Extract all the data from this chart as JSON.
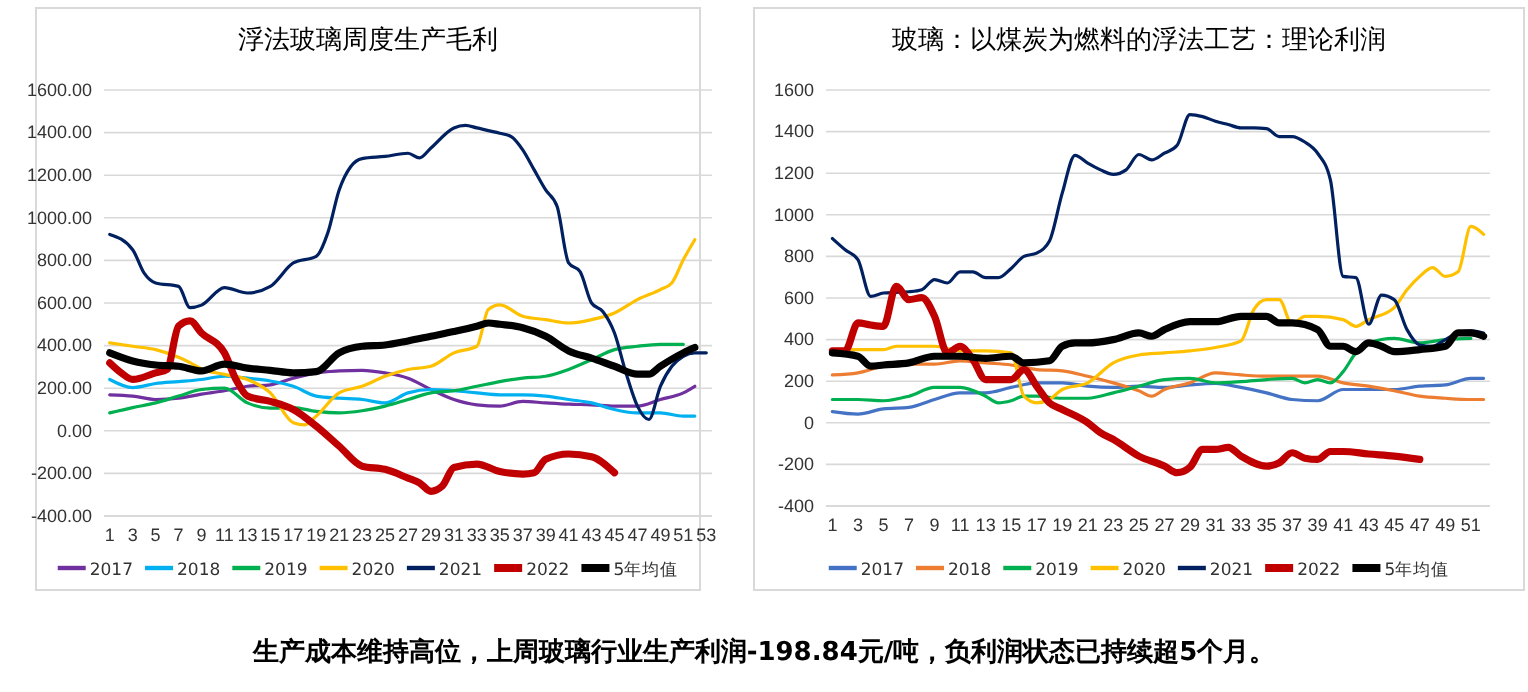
{
  "chart_data": [
    {
      "type": "line",
      "title": "浮法玻璃周度生产毛利",
      "xlim": [
        0.5,
        53.5
      ],
      "xticks": [
        1,
        3,
        5,
        7,
        9,
        11,
        13,
        15,
        17,
        19,
        21,
        23,
        25,
        27,
        29,
        31,
        33,
        35,
        37,
        39,
        41,
        43,
        45,
        47,
        49,
        51,
        53
      ],
      "ylim": [
        -400,
        1600
      ],
      "yticks": [
        {
          "value": -400,
          "label": "-400.00"
        },
        {
          "value": -200,
          "label": "-200.00"
        },
        {
          "value": 0,
          "label": "0.00"
        },
        {
          "value": 200,
          "label": "200.00"
        },
        {
          "value": 400,
          "label": "400.00"
        },
        {
          "value": 600,
          "label": "600.00"
        },
        {
          "value": 800,
          "label": "800.00"
        },
        {
          "value": 1000,
          "label": "1000.00"
        },
        {
          "value": 1200,
          "label": "1200.00"
        },
        {
          "value": 1400,
          "label": "1400.00"
        },
        {
          "value": 1600,
          "label": "1600.00"
        }
      ],
      "grid": "y",
      "legend": "bottom",
      "line_style": "solid",
      "marker": "none",
      "series": [
        {
          "name": "2017",
          "color": "#7030a0",
          "x": [
            1,
            3,
            5,
            7,
            9,
            11,
            13,
            15,
            17,
            19,
            21,
            23,
            25,
            27,
            29,
            31,
            33,
            35,
            37,
            39,
            41,
            43,
            45,
            47,
            49,
            51,
            52
          ],
          "values": [
            169,
            163,
            147,
            153,
            172,
            188,
            209,
            216,
            247,
            272,
            281,
            284,
            272,
            247,
            194,
            147,
            122,
            116,
            138,
            131,
            125,
            122,
            116,
            116,
            147,
            178,
            209
          ]
        },
        {
          "name": "2018",
          "color": "#00b0f0",
          "x": [
            1,
            3,
            5,
            7,
            9,
            11,
            13,
            15,
            17,
            19,
            21,
            23,
            25,
            27,
            29,
            31,
            33,
            35,
            37,
            39,
            41,
            43,
            45,
            47,
            49,
            51,
            52
          ],
          "values": [
            241,
            203,
            222,
            231,
            241,
            256,
            247,
            234,
            209,
            163,
            153,
            147,
            131,
            178,
            194,
            188,
            178,
            169,
            169,
            163,
            147,
            131,
            100,
            84,
            84,
            69,
            69
          ]
        },
        {
          "name": "2019",
          "color": "#00b050",
          "x": [
            1,
            3,
            5,
            7,
            9,
            11,
            13,
            15,
            17,
            19,
            21,
            23,
            25,
            27,
            29,
            31,
            33,
            35,
            37,
            39,
            41,
            43,
            45,
            47,
            49,
            51
          ],
          "values": [
            84,
            109,
            131,
            163,
            194,
            200,
            131,
            106,
            109,
            91,
            84,
            94,
            116,
            147,
            178,
            188,
            209,
            231,
            247,
            256,
            288,
            334,
            381,
            397,
            406,
            406
          ]
        },
        {
          "name": "2020",
          "color": "#ffc000",
          "x": [
            1,
            3,
            5,
            7,
            8,
            9,
            11,
            13,
            15,
            17,
            18,
            19,
            21,
            23,
            25,
            27,
            29,
            31,
            33,
            34,
            35,
            37,
            39,
            41,
            43,
            45,
            47,
            49,
            50,
            51,
            52
          ],
          "values": [
            413,
            397,
            381,
            345,
            320,
            290,
            265,
            241,
            178,
            38,
            28,
            69,
            178,
            209,
            256,
            288,
            303,
            366,
            397,
            569,
            591,
            538,
            522,
            506,
            522,
            553,
            616,
            663,
            694,
            803,
            897
          ]
        },
        {
          "name": "2021",
          "color": "#002060",
          "x": [
            1,
            3,
            4,
            5,
            7,
            8,
            9,
            11,
            13,
            15,
            17,
            19,
            20,
            21,
            22,
            23,
            25,
            27,
            28,
            29,
            31,
            32,
            33,
            35,
            36,
            37,
            38,
            39,
            40,
            41,
            42,
            43,
            44,
            45,
            46,
            47,
            48,
            49,
            50,
            51,
            52,
            53
          ],
          "values": [
            922,
            850,
            740,
            694,
            678,
            578,
            590,
            672,
            647,
            678,
            788,
            819,
            928,
            1131,
            1240,
            1278,
            1288,
            1303,
            1281,
            1328,
            1422,
            1434,
            1422,
            1397,
            1381,
            1319,
            1225,
            1131,
            1053,
            788,
            747,
            600,
            559,
            459,
            272,
            116,
            53,
            209,
            303,
            350,
            366,
            366
          ]
        },
        {
          "name": "2022",
          "color": "#c00000",
          "x": [
            1,
            2,
            3,
            5,
            6,
            7,
            8,
            9,
            11,
            12,
            13,
            15,
            17,
            19,
            21,
            23,
            25,
            27,
            28,
            29,
            30,
            31,
            33,
            35,
            37,
            38,
            39,
            41,
            43,
            45
          ],
          "values": [
            319,
            272,
            241,
            272,
            288,
            491,
            516,
            459,
            366,
            241,
            163,
            138,
            100,
            22,
            -72,
            -166,
            -181,
            -222,
            -244,
            -284,
            -259,
            -172,
            -156,
            -191,
            -203,
            -197,
            -134,
            -109,
            -122,
            -197
          ]
        },
        {
          "name": "5年均值",
          "color": "#000000",
          "x": [
            1,
            3,
            5,
            7,
            9,
            11,
            13,
            15,
            17,
            19,
            21,
            23,
            25,
            27,
            29,
            31,
            33,
            34,
            35,
            37,
            39,
            41,
            43,
            45,
            47,
            48,
            49,
            51,
            52
          ],
          "values": [
            366,
            328,
            309,
            303,
            281,
            313,
            294,
            284,
            272,
            278,
            366,
            397,
            403,
            422,
            444,
            466,
            491,
            506,
            500,
            484,
            444,
            375,
            341,
            303,
            266,
            266,
            303,
            366,
            391
          ]
        }
      ]
    },
    {
      "type": "line",
      "title": "玻璃：以煤炭为燃料的浮法工艺：理论利润",
      "xlim": [
        0.5,
        52.5
      ],
      "xticks": [
        1,
        3,
        5,
        7,
        9,
        11,
        13,
        15,
        17,
        19,
        21,
        23,
        25,
        27,
        29,
        31,
        33,
        35,
        37,
        39,
        41,
        43,
        45,
        47,
        49,
        51
      ],
      "ylim": [
        -400,
        1600
      ],
      "yticks": [
        -400,
        -200,
        0,
        200,
        400,
        600,
        800,
        1000,
        1200,
        1400,
        1600
      ],
      "grid": "y",
      "legend": "bottom",
      "line_style": "solid",
      "marker": "none",
      "annotations": [
        "生产成本维持高位，上周玻璃行业生产利润-198.84元/吨，负利润状态已持续超5个月。"
      ],
      "series": [
        {
          "name": "2017",
          "color": "#4472c4",
          "x": [
            1,
            3,
            5,
            7,
            9,
            11,
            13,
            15,
            17,
            19,
            21,
            23,
            25,
            27,
            29,
            31,
            33,
            35,
            37,
            39,
            41,
            43,
            45,
            47,
            49,
            51,
            52
          ],
          "values": [
            54,
            42,
            67,
            74,
            112,
            144,
            144,
            170,
            192,
            192,
            176,
            170,
            176,
            170,
            182,
            189,
            170,
            144,
            112,
            106,
            160,
            160,
            160,
            176,
            182,
            214,
            214
          ]
        },
        {
          "name": "2018",
          "color": "#ed7d31",
          "x": [
            1,
            3,
            5,
            7,
            9,
            11,
            13,
            15,
            17,
            19,
            21,
            23,
            25,
            26,
            27,
            29,
            31,
            33,
            35,
            37,
            39,
            41,
            43,
            45,
            47,
            49,
            51,
            52
          ],
          "values": [
            230,
            240,
            272,
            282,
            282,
            298,
            288,
            278,
            256,
            250,
            224,
            192,
            154,
            128,
            160,
            192,
            240,
            230,
            224,
            224,
            224,
            192,
            176,
            154,
            128,
            118,
            112,
            112
          ]
        },
        {
          "name": "2019",
          "color": "#00b050",
          "x": [
            1,
            3,
            5,
            7,
            9,
            11,
            13,
            14,
            15,
            16,
            17,
            19,
            21,
            23,
            25,
            27,
            29,
            31,
            33,
            35,
            37,
            38,
            39,
            40,
            41,
            42,
            43,
            45,
            47,
            49,
            51
          ],
          "values": [
            112,
            112,
            106,
            128,
            170,
            170,
            128,
            96,
            106,
            128,
            128,
            118,
            118,
            144,
            176,
            208,
            214,
            192,
            198,
            208,
            214,
            192,
            208,
            192,
            246,
            336,
            384,
            406,
            384,
            400,
            406
          ]
        },
        {
          "name": "2020",
          "color": "#ffc000",
          "x": [
            1,
            3,
            5,
            6,
            7,
            9,
            11,
            13,
            15,
            16,
            17,
            18,
            19,
            21,
            23,
            25,
            27,
            29,
            31,
            33,
            34,
            35,
            36,
            37,
            38,
            39,
            41,
            42,
            43,
            45,
            46,
            47,
            48,
            49,
            50,
            51,
            52
          ],
          "values": [
            352,
            352,
            352,
            368,
            368,
            368,
            346,
            346,
            336,
            128,
            96,
            112,
            160,
            192,
            288,
            326,
            336,
            346,
            362,
            394,
            544,
            592,
            592,
            474,
            512,
            512,
            496,
            464,
            496,
            554,
            640,
            704,
            746,
            704,
            726,
            944,
            906
          ]
        },
        {
          "name": "2021",
          "color": "#002060",
          "x": [
            1,
            2,
            3,
            4,
            5,
            6,
            7,
            8,
            9,
            10,
            11,
            12,
            13,
            14,
            15,
            16,
            17,
            18,
            19,
            20,
            21,
            22,
            23,
            24,
            25,
            26,
            27,
            28,
            29,
            30,
            31,
            32,
            33,
            34,
            35,
            36,
            37,
            38,
            39,
            40,
            41,
            42,
            43,
            44,
            45,
            46,
            47,
            48,
            49,
            50,
            51,
            52
          ],
          "values": [
            886,
            832,
            784,
            608,
            624,
            627,
            630,
            640,
            688,
            672,
            726,
            726,
            698,
            698,
            742,
            800,
            816,
            874,
            1104,
            1286,
            1248,
            1216,
            1194,
            1216,
            1290,
            1264,
            1296,
            1334,
            1482,
            1472,
            1450,
            1434,
            1418,
            1418,
            1414,
            1376,
            1376,
            1350,
            1296,
            1168,
            704,
            698,
            474,
            614,
            592,
            448,
            374,
            368,
            400,
            432,
            442,
            432
          ]
        },
        {
          "name": "2022",
          "color": "#c00000",
          "x": [
            1,
            2,
            3,
            4,
            5,
            6,
            7,
            8,
            9,
            10,
            11,
            12,
            13,
            15,
            16,
            17,
            18,
            19,
            21,
            22,
            23,
            25,
            27,
            28,
            29,
            30,
            31,
            32,
            33,
            35,
            36,
            37,
            38,
            39,
            40,
            41,
            43,
            45,
            47
          ],
          "values": [
            346,
            346,
            480,
            470,
            464,
            656,
            592,
            602,
            512,
            336,
            368,
            304,
            208,
            208,
            256,
            176,
            96,
            64,
            0,
            -48,
            -80,
            -160,
            -208,
            -240,
            -214,
            -128,
            -128,
            -118,
            -160,
            -208,
            -192,
            -144,
            -170,
            -176,
            -138,
            -138,
            -150,
            -160,
            -176
          ]
        },
        {
          "name": "5年均值",
          "color": "#000000",
          "x": [
            1,
            3,
            4,
            5,
            7,
            9,
            11,
            13,
            15,
            16,
            18,
            19,
            20,
            21,
            23,
            25,
            26,
            27,
            29,
            31,
            33,
            35,
            36,
            37,
            39,
            40,
            41,
            42,
            43,
            44,
            45,
            47,
            49,
            50,
            51,
            52
          ],
          "values": [
            336,
            320,
            272,
            278,
            288,
            320,
            320,
            310,
            320,
            288,
            298,
            368,
            384,
            384,
            400,
            432,
            416,
            448,
            486,
            486,
            512,
            512,
            480,
            480,
            448,
            368,
            368,
            342,
            384,
            368,
            342,
            352,
            368,
            432,
            432,
            416
          ]
        }
      ]
    }
  ]
}
